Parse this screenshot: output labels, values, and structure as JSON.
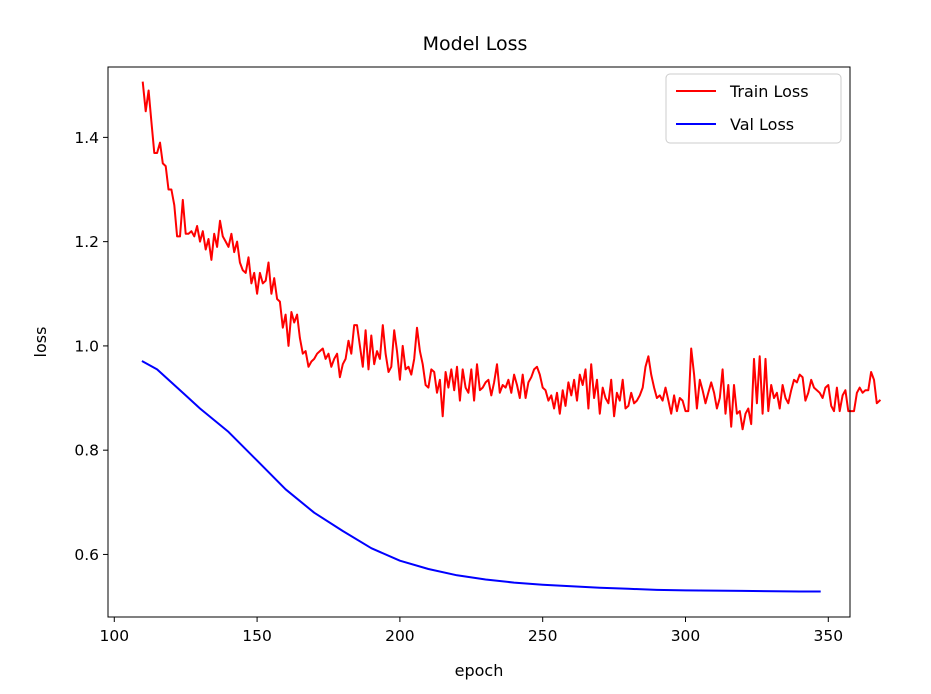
{
  "chart_data": {
    "type": "line",
    "title": "Model Loss",
    "xlabel": "epoch",
    "ylabel": "loss",
    "xlim": [
      97.8,
      357.6
    ],
    "ylim": [
      0.48,
      1.535
    ],
    "xticks": [
      100,
      150,
      200,
      250,
      300,
      350
    ],
    "yticks": [
      0.6,
      0.8,
      1.0,
      1.2,
      1.4
    ],
    "xtick_labels": [
      "100",
      "150",
      "200",
      "250",
      "300",
      "350"
    ],
    "ytick_labels": [
      "0.6",
      "0.8",
      "1.0",
      "1.2",
      "1.4"
    ],
    "legend_position": "upper right",
    "series": [
      {
        "name": "Train Loss",
        "color": "#ff0000",
        "x_start": 110,
        "x_step": 1,
        "values": [
          1.505,
          1.45,
          1.49,
          1.43,
          1.37,
          1.37,
          1.39,
          1.35,
          1.345,
          1.3,
          1.3,
          1.27,
          1.21,
          1.21,
          1.28,
          1.215,
          1.215,
          1.22,
          1.21,
          1.23,
          1.2,
          1.22,
          1.185,
          1.205,
          1.165,
          1.215,
          1.19,
          1.24,
          1.21,
          1.2,
          1.19,
          1.215,
          1.18,
          1.2,
          1.16,
          1.145,
          1.14,
          1.17,
          1.12,
          1.14,
          1.1,
          1.14,
          1.12,
          1.125,
          1.16,
          1.1,
          1.13,
          1.09,
          1.085,
          1.035,
          1.06,
          1.0,
          1.065,
          1.045,
          1.06,
          1.015,
          0.985,
          0.99,
          0.96,
          0.97,
          0.975,
          0.985,
          0.99,
          0.995,
          0.975,
          0.985,
          0.96,
          0.975,
          0.985,
          0.94,
          0.965,
          0.975,
          1.01,
          0.985,
          1.04,
          1.04,
          1.0,
          0.96,
          1.03,
          0.955,
          1.02,
          0.965,
          0.99,
          0.975,
          1.04,
          0.985,
          0.95,
          0.96,
          1.03,
          0.99,
          0.935,
          1.0,
          0.955,
          0.96,
          0.945,
          0.975,
          1.035,
          0.99,
          0.965,
          0.925,
          0.92,
          0.955,
          0.95,
          0.91,
          0.935,
          0.865,
          0.95,
          0.92,
          0.955,
          0.915,
          0.96,
          0.895,
          0.955,
          0.92,
          0.91,
          0.955,
          0.895,
          0.965,
          0.915,
          0.92,
          0.93,
          0.935,
          0.905,
          0.93,
          0.965,
          0.91,
          0.925,
          0.92,
          0.935,
          0.91,
          0.945,
          0.925,
          0.9,
          0.945,
          0.9,
          0.93,
          0.94,
          0.955,
          0.96,
          0.945,
          0.92,
          0.915,
          0.895,
          0.905,
          0.88,
          0.91,
          0.87,
          0.915,
          0.885,
          0.93,
          0.905,
          0.935,
          0.895,
          0.945,
          0.925,
          0.955,
          0.88,
          0.965,
          0.9,
          0.935,
          0.87,
          0.92,
          0.9,
          0.89,
          0.935,
          0.865,
          0.91,
          0.895,
          0.935,
          0.88,
          0.885,
          0.91,
          0.89,
          0.895,
          0.905,
          0.92,
          0.96,
          0.98,
          0.945,
          0.92,
          0.9,
          0.905,
          0.895,
          0.92,
          0.895,
          0.87,
          0.905,
          0.875,
          0.9,
          0.895,
          0.875,
          0.875,
          0.995,
          0.945,
          0.88,
          0.935,
          0.915,
          0.89,
          0.91,
          0.93,
          0.91,
          0.88,
          0.9,
          0.955,
          0.87,
          0.925,
          0.845,
          0.925,
          0.87,
          0.875,
          0.84,
          0.87,
          0.88,
          0.85,
          0.975,
          0.89,
          0.98,
          0.87,
          0.975,
          0.875,
          0.925,
          0.9,
          0.91,
          0.88,
          0.925,
          0.9,
          0.89,
          0.915,
          0.935,
          0.93,
          0.945,
          0.94,
          0.895,
          0.91,
          0.935,
          0.92,
          0.915,
          0.91,
          0.9,
          0.92,
          0.925,
          0.885,
          0.875,
          0.92,
          0.875,
          0.905,
          0.915,
          0.875,
          0.875,
          0.875,
          0.91,
          0.92,
          0.91,
          0.915,
          0.915,
          0.95,
          0.935,
          0.89,
          0.895
        ]
      },
      {
        "name": "Val Loss",
        "color": "#0000ff",
        "x": [
          110,
          115,
          120,
          125,
          130,
          140,
          150,
          160,
          170,
          180,
          190,
          200,
          210,
          220,
          230,
          240,
          250,
          260,
          270,
          280,
          290,
          300,
          320,
          340,
          347
        ],
        "values": [
          0.97,
          0.955,
          0.93,
          0.905,
          0.88,
          0.835,
          0.78,
          0.725,
          0.68,
          0.645,
          0.612,
          0.588,
          0.572,
          0.56,
          0.552,
          0.546,
          0.542,
          0.539,
          0.536,
          0.534,
          0.532,
          0.531,
          0.53,
          0.529,
          0.529
        ]
      }
    ]
  }
}
